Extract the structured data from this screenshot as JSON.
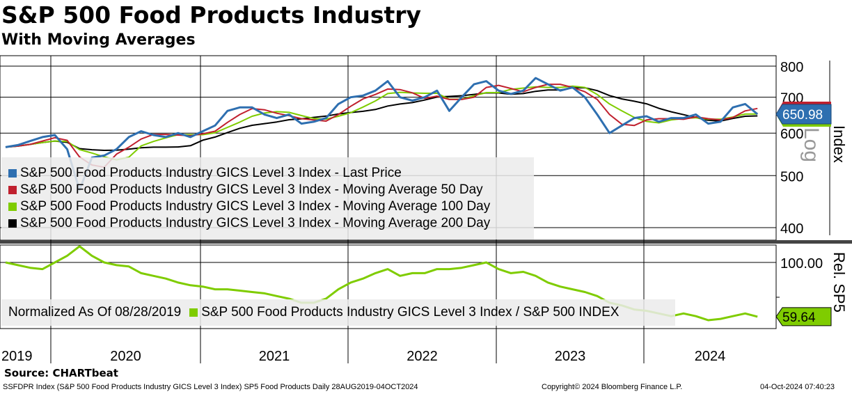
{
  "header": {
    "title": "S&P 500 Food Products Industry",
    "subtitle": "With Moving Averages"
  },
  "colors": {
    "price": "#2e6fb0",
    "ma50": "#c0202e",
    "ma100": "#7fcc00",
    "ma200": "#000000",
    "rel": "#7fcc00"
  },
  "chart_data": [
    {
      "type": "line",
      "title": "S&P 500 Food Products Industry",
      "ylabel": "Index",
      "scale": "log",
      "scale_label": "Log",
      "ylim": [
        400,
        800
      ],
      "yticks": [
        400,
        500,
        600,
        700,
        800
      ],
      "x": [
        "2019-09",
        "2019-10",
        "2019-11",
        "2019-12",
        "2020-01",
        "2020-02",
        "2020-03",
        "2020-04",
        "2020-05",
        "2020-06",
        "2020-07",
        "2020-08",
        "2020-09",
        "2020-10",
        "2020-11",
        "2020-12",
        "2021-01",
        "2021-02",
        "2021-03",
        "2021-04",
        "2021-05",
        "2021-06",
        "2021-07",
        "2021-08",
        "2021-09",
        "2021-10",
        "2021-11",
        "2021-12",
        "2022-01",
        "2022-02",
        "2022-03",
        "2022-04",
        "2022-05",
        "2022-06",
        "2022-07",
        "2022-08",
        "2022-09",
        "2022-10",
        "2022-11",
        "2022-12",
        "2023-01",
        "2023-02",
        "2023-03",
        "2023-04",
        "2023-05",
        "2023-06",
        "2023-07",
        "2023-08",
        "2023-09",
        "2023-10",
        "2023-11",
        "2023-12",
        "2024-01",
        "2024-02",
        "2024-03",
        "2024-04",
        "2024-05",
        "2024-06",
        "2024-07",
        "2024-08",
        "2024-09",
        "2024-10"
      ],
      "series": [
        {
          "name": "S&P 500 Food Products Industry GICS Level 3 Index - Last Price",
          "values": [
            565,
            570,
            580,
            590,
            595,
            560,
            470,
            540,
            545,
            560,
            590,
            605,
            595,
            590,
            600,
            590,
            605,
            620,
            660,
            670,
            670,
            650,
            640,
            650,
            625,
            630,
            640,
            680,
            700,
            705,
            720,
            750,
            700,
            690,
            700,
            720,
            660,
            700,
            740,
            750,
            720,
            710,
            720,
            760,
            740,
            720,
            730,
            700,
            650,
            600,
            620,
            640,
            645,
            630,
            640,
            640,
            650,
            625,
            630,
            670,
            680,
            650.98
          ]
        },
        {
          "name": "S&P 500 Food Products Industry GICS Level 3 Index - Moving Average 50 Day",
          "window_months": 2.5
        },
        {
          "name": "S&P 500 Food Products Industry GICS Level 3 Index - Moving Average 100 Day",
          "window_months": 5
        },
        {
          "name": "S&P 500 Food Products Industry GICS Level 3 Index - Moving Average 200 Day",
          "window_months": 10
        }
      ],
      "last_value_label": "650.98"
    },
    {
      "type": "line",
      "ylabel": "Rel. SP5",
      "ylim": [
        55,
        112
      ],
      "yticks": [
        100
      ],
      "ytick_labels": [
        "100.00"
      ],
      "note": "Normalized As Of 08/28/2019",
      "series": [
        {
          "name": "S&P 500 Food Products Industry GICS Level 3 Index / S&P 500 INDEX",
          "values": [
            100,
            98,
            96,
            95,
            100,
            105,
            112,
            105,
            100,
            98,
            97,
            92,
            90,
            88,
            85,
            83,
            82,
            80,
            80,
            79,
            78,
            77,
            75,
            73,
            70,
            70,
            73,
            80,
            85,
            88,
            92,
            95,
            90,
            92,
            92,
            95,
            95,
            96,
            98,
            100,
            95,
            92,
            93,
            90,
            85,
            82,
            80,
            78,
            75,
            70,
            68,
            65,
            64,
            62,
            60,
            62,
            60,
            57,
            58,
            60,
            62,
            59.64
          ]
        }
      ],
      "last_value_label": "59.64"
    }
  ],
  "x_axis": {
    "years": [
      "2019",
      "2020",
      "2021",
      "2022",
      "2023",
      "2024"
    ]
  },
  "source": "Source: CHARTbeat",
  "footer": {
    "left": "SSFDPR Index (S&P 500 Food Products Industry GICS Level 3 Index) SP5 Food Products  Daily 28AUG2019-04OCT2024",
    "center": "Copyright© 2024 Bloomberg Finance L.P.",
    "right": "04-Oct-2024 07:40:23"
  }
}
